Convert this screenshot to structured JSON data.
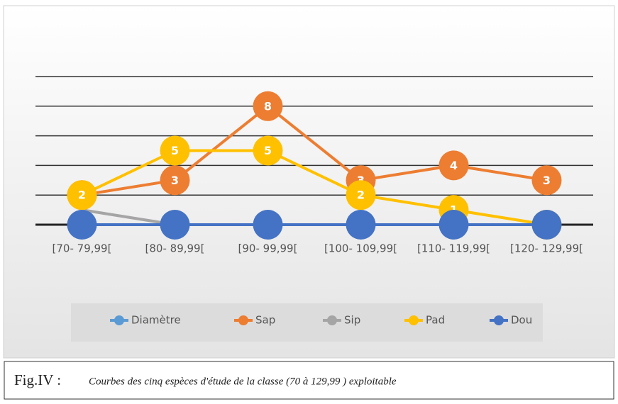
{
  "chart_data": {
    "type": "line",
    "categories": [
      "[70- 79,99[",
      "[80- 89,99[",
      "[90- 99,99[",
      "[100- 109,99[",
      "[110- 119,99[",
      "[120- 129,99["
    ],
    "series": [
      {
        "name": "Diamètre",
        "color": "#5b9bd5",
        "values": [
          null,
          null,
          null,
          null,
          null,
          null
        ],
        "markers": true
      },
      {
        "name": "Sap",
        "color": "#ed7d31",
        "values": [
          2,
          3,
          8,
          3,
          4,
          3
        ],
        "markers": true
      },
      {
        "name": "Sip",
        "color": "#a5a5a5",
        "values": [
          1,
          0,
          0,
          0,
          0,
          0
        ],
        "markers": false
      },
      {
        "name": "Pad",
        "color": "#ffc000",
        "values": [
          2,
          5,
          5,
          2,
          1,
          0
        ],
        "markers": true
      },
      {
        "name": "Dou",
        "color": "#4472c4",
        "values": [
          0,
          0,
          0,
          0,
          0,
          0
        ],
        "markers": true
      }
    ],
    "ylim": [
      0,
      10
    ],
    "yticks": [
      0,
      2,
      4,
      6,
      8,
      10
    ],
    "grid": true,
    "caption_label": "Fig.IV :",
    "caption": "Courbes des cinq espèces d'étude de la classe (70 à 129,99 )  exploitable"
  }
}
